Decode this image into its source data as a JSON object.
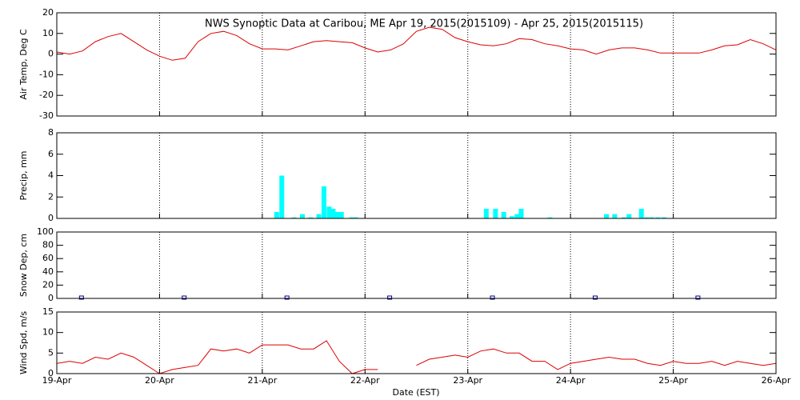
{
  "chart_data": [
    {
      "type": "line",
      "title": "NWS Synoptic Data at Caribou, ME   Apr 19, 2015(2015109) - Apr 25, 2015(2015115)",
      "ylabel": "Air Temp, Deg C",
      "color": "#dd0000",
      "x": [
        0,
        0.125,
        0.25,
        0.375,
        0.5,
        0.625,
        0.75,
        0.875,
        1,
        1.125,
        1.25,
        1.375,
        1.5,
        1.625,
        1.75,
        1.875,
        2,
        2.125,
        2.25,
        2.375,
        2.5,
        2.625,
        2.75,
        2.875,
        3,
        3.125,
        3.25,
        3.375,
        3.5,
        3.625,
        3.75,
        3.875,
        4,
        4.125,
        4.25,
        4.375,
        4.5,
        4.625,
        4.75,
        4.875,
        5,
        5.125,
        5.25,
        5.375,
        5.5,
        5.625,
        5.75,
        5.875,
        6,
        6.125,
        6.25,
        6.375,
        6.5,
        6.625,
        6.75,
        6.875,
        7
      ],
      "values": [
        1,
        0,
        1.5,
        6,
        8.5,
        10,
        6,
        2,
        -1,
        -3,
        -2,
        6,
        10,
        11,
        9,
        5,
        2.5,
        2.5,
        2,
        4,
        6,
        6.5,
        6,
        5.5,
        3,
        1,
        2,
        5,
        11,
        13,
        12,
        8,
        6,
        4.5,
        4,
        5,
        7.5,
        7,
        5,
        4,
        2.5,
        2,
        0,
        2,
        3,
        3,
        2,
        0.5,
        0.5,
        0.5,
        0.5,
        2,
        4,
        4.5,
        7,
        5,
        2
      ],
      "xlim": [
        0,
        7
      ],
      "ylim": [
        -30,
        20
      ],
      "yticks": [
        -30,
        -20,
        -10,
        0,
        10,
        20
      ],
      "grid": true
    },
    {
      "type": "bar",
      "ylabel": "Precip, mm",
      "color": "#00ffff",
      "x": [
        2.14,
        2.19,
        2.31,
        2.39,
        2.47,
        2.55,
        2.6,
        2.65,
        2.69,
        2.73,
        2.77,
        2.87,
        2.91,
        4.18,
        4.27,
        4.35,
        4.43,
        4.48,
        4.52,
        4.8,
        5.35,
        5.43,
        5.52,
        5.57,
        5.69,
        5.74,
        5.79,
        5.85,
        5.91
      ],
      "values": [
        0.6,
        4,
        0.1,
        0.4,
        0.1,
        0.4,
        3,
        1.1,
        0.9,
        0.6,
        0.6,
        0.1,
        0.1,
        0.9,
        0.9,
        0.6,
        0.2,
        0.4,
        0.9,
        0.1,
        0.4,
        0.4,
        0.1,
        0.4,
        0.9,
        0.1,
        0.1,
        0.1,
        0.1
      ],
      "xlim": [
        0,
        7
      ],
      "ylim": [
        0,
        8
      ],
      "yticks": [
        0,
        2,
        4,
        6,
        8
      ],
      "grid": true
    },
    {
      "type": "scatter",
      "ylabel": "Snow Dep, cm",
      "color": "#000080",
      "x": [
        0.24,
        1.24,
        2.24,
        3.24,
        4.24,
        5.24,
        6.24
      ],
      "values": [
        0,
        0,
        0,
        0,
        0,
        0,
        0
      ],
      "xlim": [
        0,
        7
      ],
      "ylim": [
        0,
        100
      ],
      "yticks": [
        0,
        20,
        40,
        60,
        80,
        100
      ],
      "grid": true
    },
    {
      "type": "line",
      "ylabel": "Wind Spd, m/s",
      "xlabel": "Date (EST)",
      "color": "#dd0000",
      "x": [
        0,
        0.125,
        0.25,
        0.375,
        0.5,
        0.625,
        0.75,
        0.875,
        1,
        1.125,
        1.25,
        1.375,
        1.5,
        1.625,
        1.75,
        1.875,
        2,
        2.125,
        2.25,
        2.375,
        2.5,
        2.625,
        2.75,
        2.875,
        3,
        3.125,
        3.25,
        3.375,
        3.5,
        3.625,
        3.75,
        3.875,
        4,
        4.125,
        4.25,
        4.375,
        4.5,
        4.625,
        4.75,
        4.875,
        5,
        5.125,
        5.25,
        5.375,
        5.5,
        5.625,
        5.75,
        5.875,
        6,
        6.125,
        6.25,
        6.375,
        6.5,
        6.625,
        6.75,
        6.875,
        7
      ],
      "values": [
        2.5,
        3,
        2.5,
        4,
        3.5,
        5,
        4,
        2,
        0,
        1,
        1.5,
        2,
        6,
        5.5,
        6,
        5,
        7,
        7,
        7,
        6,
        6,
        8,
        3,
        0,
        1,
        1,
        null,
        null,
        2,
        3.5,
        4,
        4.5,
        4,
        5.5,
        6,
        5,
        5,
        3,
        3,
        1,
        2.5,
        3,
        3.5,
        4,
        3.5,
        3.5,
        2.5,
        2,
        3,
        2.5,
        2.5,
        3,
        2,
        3,
        2.5,
        2,
        2.5
      ],
      "xlim": [
        0,
        7
      ],
      "ylim": [
        0,
        15
      ],
      "yticks": [
        0,
        5,
        10,
        15
      ],
      "grid": true,
      "xticks": [
        {
          "value": 0,
          "label": "19-Apr"
        },
        {
          "value": 1,
          "label": "20-Apr"
        },
        {
          "value": 2,
          "label": "21-Apr"
        },
        {
          "value": 3,
          "label": "22-Apr"
        },
        {
          "value": 4,
          "label": "23-Apr"
        },
        {
          "value": 5,
          "label": "24-Apr"
        },
        {
          "value": 6,
          "label": "25-Apr"
        },
        {
          "value": 7,
          "label": "26-Apr"
        }
      ]
    }
  ]
}
